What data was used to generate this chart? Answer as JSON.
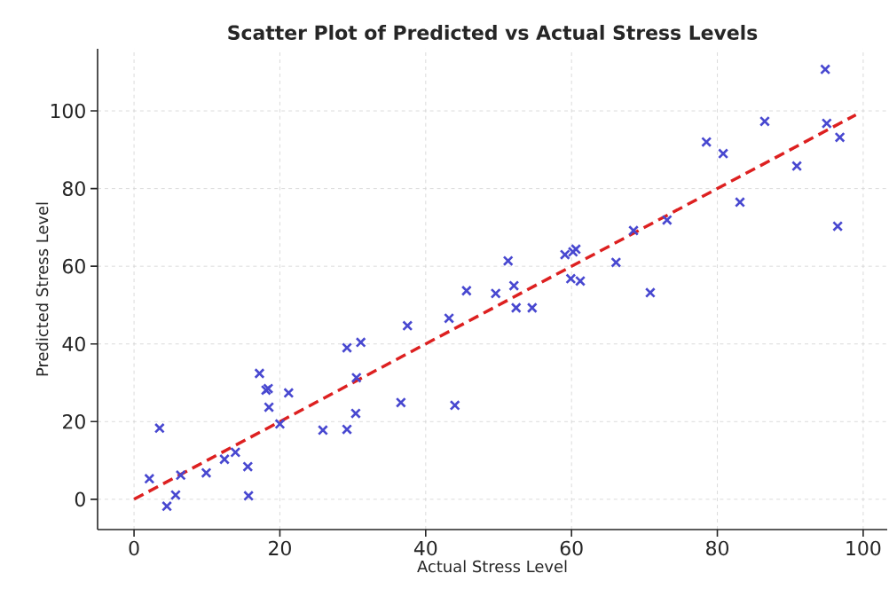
{
  "chart_data": {
    "type": "scatter",
    "title": "Scatter Plot of Predicted vs Actual Stress Levels",
    "xlabel": "Actual Stress Level",
    "ylabel": "Predicted Stress Level",
    "xlim": [
      -5,
      103.3
    ],
    "ylim": [
      -7.8,
      116
    ],
    "xticks": [
      0,
      20,
      40,
      60,
      80,
      100
    ],
    "yticks": [
      0,
      20,
      40,
      60,
      80,
      100
    ],
    "grid": true,
    "marker": "cross",
    "series": [
      {
        "color": "#4848d0",
        "x": [
          2.1,
          3.5,
          4.5,
          5.7,
          6.4,
          9.9,
          12.4,
          13.9,
          15.6,
          15.7,
          17.2,
          18.1,
          18.4,
          18.5,
          20.0,
          21.2,
          25.9,
          29.2,
          29.2,
          30.4,
          30.5,
          31.1,
          36.6,
          37.5,
          43.2,
          44.0,
          45.6,
          49.6,
          51.3,
          52.1,
          52.4,
          54.6,
          59.1,
          59.9,
          60.2,
          60.6,
          61.2,
          66.1,
          68.5,
          70.8,
          73.1,
          78.5,
          80.8,
          83.1,
          86.5,
          90.9,
          94.8,
          95.0,
          96.5,
          96.8
        ],
        "values": [
          5.3,
          18.3,
          -1.8,
          1.1,
          6.2,
          6.8,
          10.3,
          12.1,
          8.4,
          0.9,
          32.4,
          28.1,
          28.5,
          23.7,
          19.4,
          27.4,
          17.8,
          18.0,
          39.0,
          22.1,
          31.3,
          40.4,
          24.9,
          44.7,
          46.6,
          24.2,
          53.7,
          53.0,
          61.4,
          55.0,
          49.3,
          49.3,
          63.0,
          56.8,
          63.7,
          64.4,
          56.2,
          61.0,
          69.2,
          53.2,
          71.9,
          92.0,
          89.0,
          76.5,
          97.3,
          85.8,
          110.7,
          96.8,
          70.3,
          93.2
        ]
      },
      {
        "type": "line",
        "color": "#dd2020",
        "line_style": "dashed",
        "marker": "none",
        "x": [
          0,
          99
        ],
        "values": [
          0,
          99
        ]
      }
    ]
  }
}
